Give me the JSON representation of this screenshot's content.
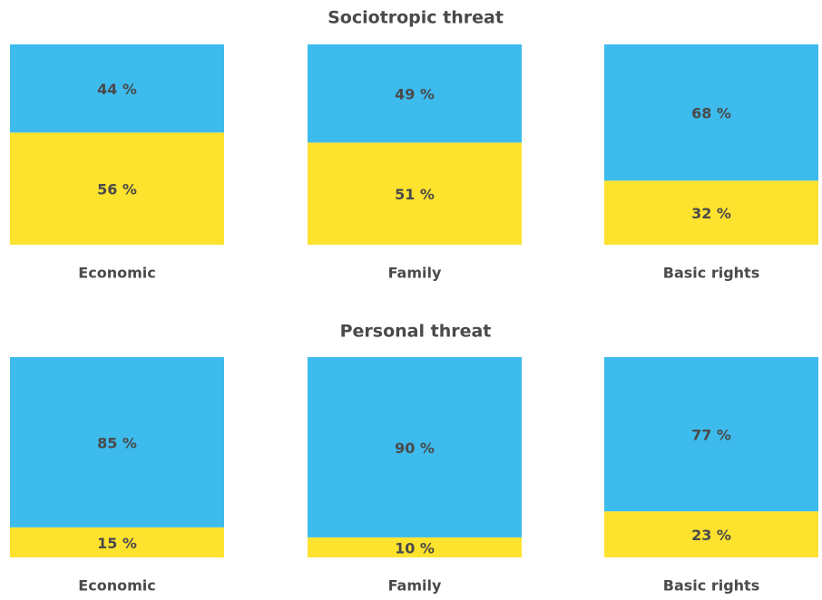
{
  "chart_data": [
    {
      "type": "bar",
      "stacked": true,
      "title": "Sociotropic threat",
      "categories": [
        "Economic",
        "Family",
        "Basic rights"
      ],
      "ylim": [
        0,
        100
      ],
      "series": [
        {
          "color": "#fde22e",
          "values": [
            56,
            51,
            32
          ],
          "value_labels": [
            "56 %",
            "51 %",
            "32 %"
          ]
        },
        {
          "color": "#3dbbed",
          "values": [
            44,
            49,
            68
          ],
          "value_labels": [
            "44 %",
            "49 %",
            "68 %"
          ]
        }
      ]
    },
    {
      "type": "bar",
      "stacked": true,
      "title": "Personal threat",
      "categories": [
        "Economic",
        "Family",
        "Basic rights"
      ],
      "ylim": [
        0,
        100
      ],
      "series": [
        {
          "color": "#fde22e",
          "values": [
            15,
            10,
            23
          ],
          "value_labels": [
            "15 %",
            "10 %",
            "23 %"
          ]
        },
        {
          "color": "#3dbbed",
          "values": [
            85,
            90,
            77
          ],
          "value_labels": [
            "85 %",
            "90 %",
            "77 %"
          ]
        }
      ]
    }
  ]
}
